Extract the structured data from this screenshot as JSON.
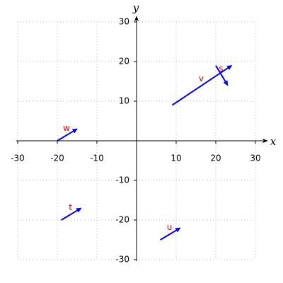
{
  "chart_data": {
    "type": "vector",
    "x_label": "x",
    "y_label": "y",
    "xlim": [
      -30,
      30
    ],
    "ylim": [
      -30,
      30
    ],
    "xticks": [
      -30,
      -20,
      -10,
      10,
      20,
      30
    ],
    "yticks": [
      -30,
      -20,
      -10,
      10,
      20,
      30
    ],
    "grid": true,
    "color": "#0000ee",
    "label_color": "#ee0000",
    "vectors": [
      {
        "name": "w",
        "x0": -20,
        "y0": 0,
        "x1": -15,
        "y1": 3
      },
      {
        "name": "v",
        "x0": 9,
        "y0": 9,
        "x1": 24,
        "y1": 19
      },
      {
        "name": "s",
        "x0": 20,
        "y0": 19,
        "x1": 23,
        "y1": 14
      },
      {
        "name": "t",
        "x0": -19,
        "y0": -20,
        "x1": -14,
        "y1": -17
      },
      {
        "name": "u",
        "x0": 6,
        "y0": -25,
        "x1": 11,
        "y1": -22
      }
    ]
  }
}
